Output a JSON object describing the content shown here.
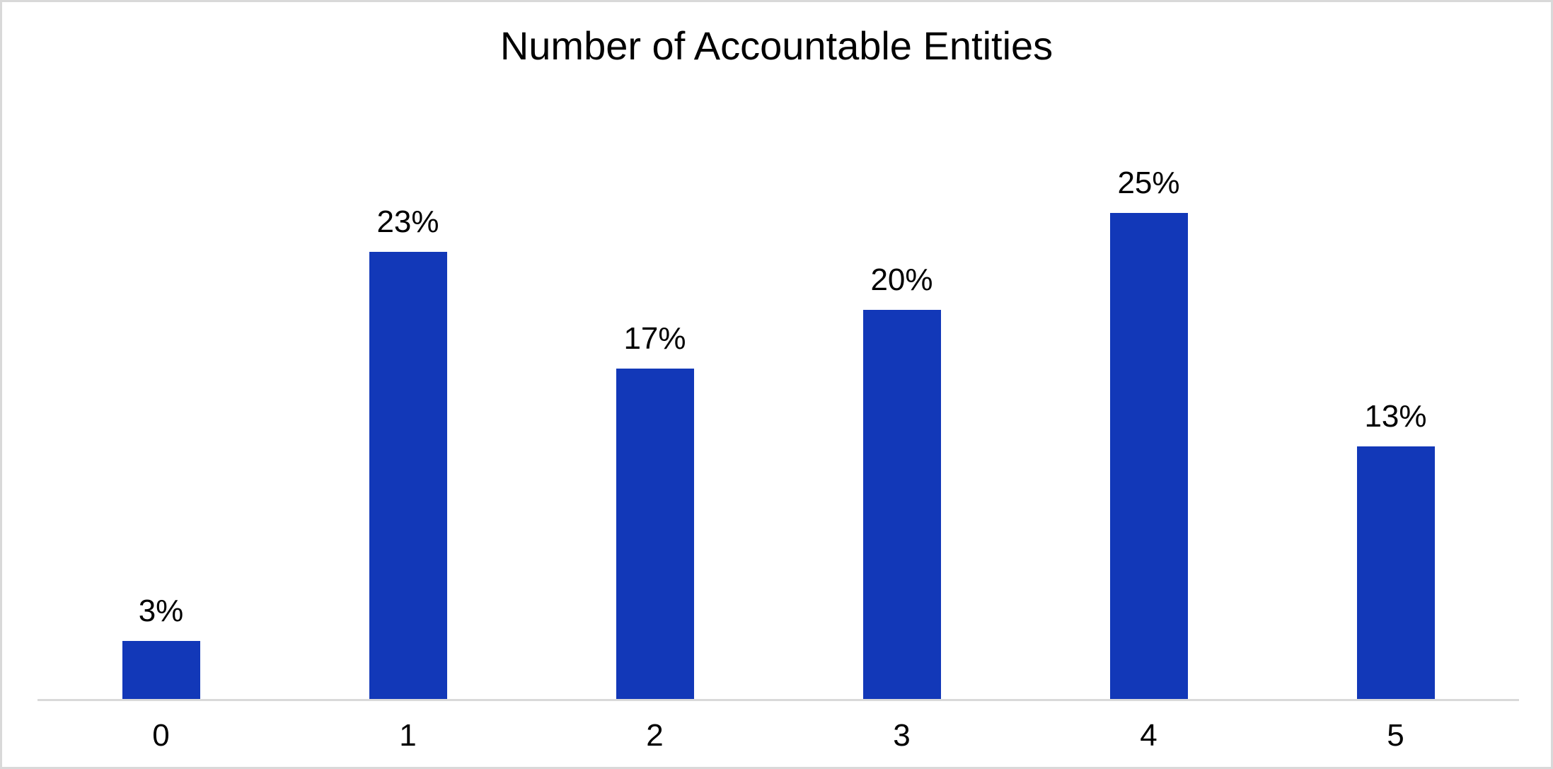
{
  "chart_data": {
    "type": "bar",
    "title": "Number of Accountable Entities",
    "categories": [
      "0",
      "1",
      "2",
      "3",
      "4",
      "5"
    ],
    "values": [
      3,
      23,
      17,
      20,
      25,
      13
    ],
    "labels": [
      "3%",
      "23%",
      "17%",
      "20%",
      "25%",
      "13%"
    ],
    "xlabel": "",
    "ylabel": "",
    "ylim": [
      0,
      27
    ],
    "grid": false,
    "legend": false,
    "colors": {
      "bar": "#1238b8",
      "axis_line": "#d9d9d9",
      "text": "#000000",
      "canvas_border": "#d9d9d9",
      "background": "#ffffff"
    }
  }
}
